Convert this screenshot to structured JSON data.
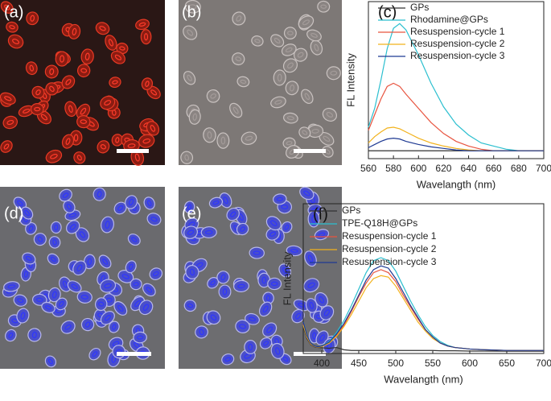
{
  "panel_labels": [
    "(a)",
    "(b)",
    "(d)",
    "(e)"
  ],
  "chart_data": [
    {
      "type": "line",
      "panel_label": "(c)",
      "xlabel": "Wavelangth (nm)",
      "ylabel": "FL Intensity",
      "xlim": [
        560,
        700
      ],
      "xticks": [
        560,
        580,
        600,
        620,
        640,
        660,
        680,
        700
      ],
      "ylim": [
        0,
        100
      ],
      "legend": "upper right",
      "x": [
        560,
        565,
        570,
        575,
        580,
        585,
        590,
        600,
        610,
        620,
        630,
        640,
        650,
        660,
        670,
        680,
        690,
        700
      ],
      "series": [
        {
          "name": "GPs",
          "color": "#333333",
          "values": [
            5,
            5,
            5,
            5,
            5,
            5,
            5,
            5,
            5,
            5,
            5,
            5,
            5,
            5,
            5,
            5,
            5,
            5
          ]
        },
        {
          "name": "Rhodamine@GPs",
          "color": "#2bbfcf",
          "values": [
            20,
            32,
            50,
            70,
            83,
            86,
            82,
            66,
            48,
            33,
            22,
            15,
            10,
            8,
            6,
            5,
            5,
            5
          ]
        },
        {
          "name": "Resuspension-cycle 1",
          "color": "#e8543f",
          "values": [
            18,
            28,
            38,
            46,
            48,
            46,
            41,
            32,
            23,
            16,
            11,
            8,
            6,
            5,
            5,
            5,
            5,
            5
          ]
        },
        {
          "name": "Resuspension-cycle 2",
          "color": "#f2b21c",
          "values": [
            10,
            14,
            17,
            19.5,
            20,
            19,
            17,
            13,
            10,
            8,
            6.5,
            5.5,
            5,
            5,
            5,
            5,
            5,
            5
          ]
        },
        {
          "name": "Resuspension-cycle 3",
          "color": "#1f3a93",
          "values": [
            7,
            9,
            11,
            12.5,
            13,
            12.5,
            11,
            9,
            7.5,
            6.5,
            5.5,
            5,
            5,
            5,
            5,
            5,
            5,
            5
          ]
        }
      ]
    },
    {
      "type": "line",
      "panel_label": "(f)",
      "xlabel": "Wavelangth (nm)",
      "ylabel": "FL Intensity",
      "xlim": [
        375,
        700
      ],
      "xticks": [
        400,
        450,
        500,
        550,
        600,
        650,
        700
      ],
      "ylim": [
        0,
        100
      ],
      "legend": "upper right",
      "x": [
        375,
        380,
        385,
        390,
        395,
        400,
        410,
        420,
        430,
        440,
        450,
        460,
        470,
        480,
        490,
        500,
        510,
        520,
        530,
        540,
        550,
        560,
        570,
        580,
        600,
        620,
        650,
        700
      ],
      "series": [
        {
          "name": "GPs",
          "color": "#333333",
          "values": [
            18,
            10,
            6,
            4.5,
            4,
            3.8,
            3.5,
            4,
            2.5,
            2,
            2,
            2,
            2,
            2,
            2,
            2,
            2,
            2,
            2,
            2,
            2,
            1.8,
            1.8,
            1.8,
            1.6,
            1.6,
            1.5,
            1.5
          ]
        },
        {
          "name": "TPE-Q18H@GPs",
          "color": "#2bbfcf",
          "values": [
            21,
            12,
            7,
            5,
            4.5,
            5,
            8,
            14,
            22,
            32,
            43,
            54,
            62,
            64,
            62,
            55,
            45,
            35,
            26,
            18,
            12,
            8,
            5.5,
            4,
            3,
            2.5,
            2,
            2
          ]
        },
        {
          "name": "Resuspension-cycle 1",
          "color": "#e8543f",
          "values": [
            20,
            11,
            6.5,
            4.8,
            4.3,
            4.8,
            7,
            12,
            19,
            28,
            38,
            47,
            54,
            56,
            54,
            48,
            39,
            31,
            23,
            16,
            11,
            7,
            5,
            4,
            3,
            2.5,
            2,
            2
          ]
        },
        {
          "name": "Resuspension-cycle 2",
          "color": "#f2b21c",
          "values": [
            19,
            11,
            6.5,
            4.8,
            4.3,
            4.6,
            6.8,
            11.5,
            18,
            26,
            35,
            44,
            50,
            52,
            51,
            45,
            37,
            29,
            21,
            15,
            10,
            7,
            5,
            4,
            3,
            2.5,
            2,
            2
          ]
        },
        {
          "name": "Resuspension-cycle 3",
          "color": "#1f3a93",
          "values": [
            21,
            12,
            7,
            5,
            4.5,
            5,
            7.5,
            13,
            20,
            29,
            39,
            49,
            56,
            58.5,
            57,
            50,
            41,
            32,
            24,
            16,
            11,
            7,
            5,
            4,
            3,
            2.5,
            2,
            2
          ]
        }
      ]
    }
  ]
}
